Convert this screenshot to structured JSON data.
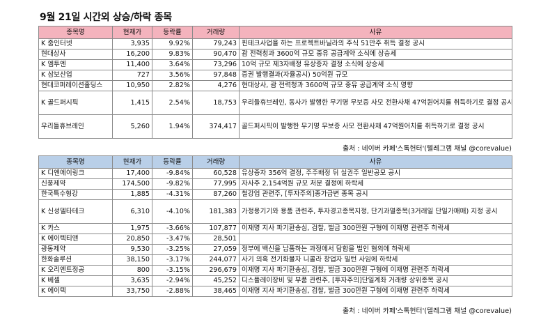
{
  "title": "9월 21일  시간외 상승/하락 종목",
  "columns": [
    "종목명",
    "현재가",
    "등락률",
    "거래량",
    "사유"
  ],
  "rising": [
    {
      "name": "K 줌인터넷",
      "price": "3,935",
      "change": "9.92%",
      "volume": "79,243",
      "reason": "핀테크사업을 하는 프로젝트바닐라의 주식 51만주 취득 결정 공시"
    },
    {
      "name": "현대상사",
      "price": "16,200",
      "change": "9.83%",
      "volume": "90,470",
      "reason": "괌 전력청과 3600억 규모 중유 공급계약 소식에 상승세"
    },
    {
      "name": "K 엠투엔",
      "price": "11,400",
      "change": "3.64%",
      "volume": "73,296",
      "reason": "10억 규모 제3자배정 유상증자 결정 소식에 상승세"
    },
    {
      "name": "K 삼보산업",
      "price": "727",
      "change": "3.56%",
      "volume": "97,848",
      "reason": "증권 발행결과(자율공시) 50억원 규모"
    },
    {
      "name": "현대코퍼레이션홀딩스",
      "price": "10,950",
      "change": "2.82%",
      "volume": "4,276",
      "reason": "현대상사, 괌 전력청과 3600억 규모 중유 공급계약 소식 영향"
    },
    {
      "name": "K 골드퍼시픽",
      "price": "1,415",
      "change": "2.54%",
      "volume": "18,753",
      "reason": "우리들휴브레인, 동사가 발행한 무기명 무보증 사모 전환사채 47억원어치를 취득하기로 결정 공시"
    },
    {
      "name": "우리들휴브레인",
      "price": "5,260",
      "change": "1.94%",
      "volume": "374,417",
      "reason": "골드퍼시픽이 발행한 무기명 무보증 사모 전환사채 47억원어치를 취득하기로 결정 공시"
    }
  ],
  "falling": [
    {
      "name": "K 디엔에이링크",
      "price": "17,400",
      "change": "-9.84%",
      "volume": "60,528",
      "reason": "유상증자 356억 결정, 주주배정 뒤 실권주 일반공모 공시"
    },
    {
      "name": "신풍제약",
      "price": "174,500",
      "change": "-9.82%",
      "volume": "77,995",
      "reason": "자사주 2,154억원 규모 처분 결정에 하락세"
    },
    {
      "name": "한국특수형강",
      "price": "1,885",
      "change": "-4.31%",
      "volume": "87,260",
      "reason": "철강업 관련주, [투자주의]종가급변 종목 공시"
    },
    {
      "name": "K 신성델타테크",
      "price": "6,310",
      "change": "-4.10%",
      "volume": "181,383",
      "reason": "가정용기기와 용품 관련주, 투자경고종목지정, 단기과열종목(3거래일 단일가매매) 지정 공시"
    },
    {
      "name": "K 카스",
      "price": "1,975",
      "change": "-3.66%",
      "volume": "107,877",
      "reason": "이재명 지사 파기환송심, 검찰, 벌금 300만원 구형에 이재명 관련주 하락세"
    },
    {
      "name": "K 에이텍티앤",
      "price": "20,850",
      "change": "-3.47%",
      "volume": "28,501",
      "reason": ""
    },
    {
      "name": "광동제약",
      "price": "9,530",
      "change": "-3.25%",
      "volume": "27,059",
      "reason": "정부에 백신을 납품하는 과정에서 담합을 벌인 혐의에 하락세"
    },
    {
      "name": "한화솔루션",
      "price": "38,150",
      "change": "-3.17%",
      "volume": "244,077",
      "reason": "사기 의혹 전기화물차 니콜라 창업자 밀턴 사임에 하락세"
    },
    {
      "name": "K 오리엔트정공",
      "price": "800",
      "change": "-3.15%",
      "volume": "296,679",
      "reason": "이재명 지사 파기환송심, 검찰, 벌금 300만원 구형에 이재명 관련주 하락세"
    },
    {
      "name": "K 베셀",
      "price": "3,635",
      "change": "-2.94%",
      "volume": "45,252",
      "reason": "디스플레이장비 및 부품 관련주, [투자주의]단일계좌 거래량 상위종목 공시"
    },
    {
      "name": "K 에이텍",
      "price": "33,750",
      "change": "-2.88%",
      "volume": "38,465",
      "reason": "이재명 지사 파기환송심, 검찰, 벌금 300만원 구형에 이재명 관련주 하락세"
    }
  ],
  "source": "출처 : 네이버 카페'스톡헌터'(텔레그램 채널 @corevalue)"
}
